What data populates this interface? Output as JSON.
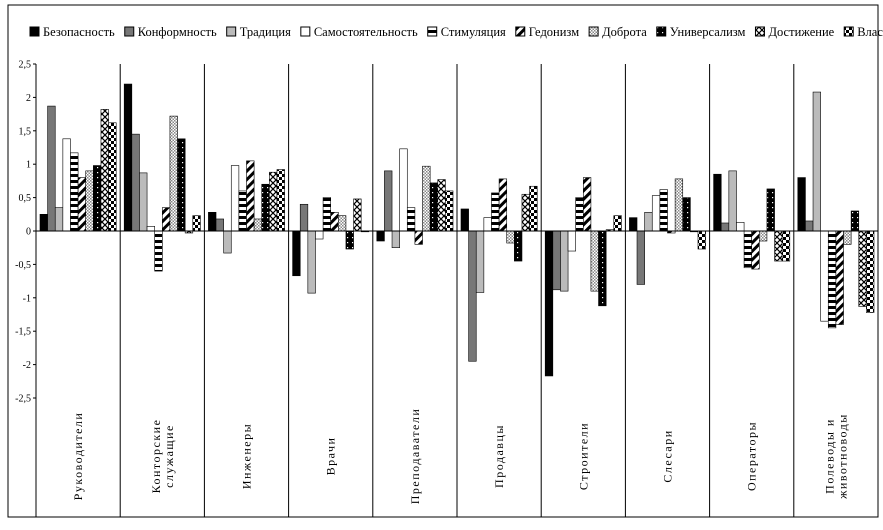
{
  "chart_data": {
    "type": "bar",
    "categories": [
      "Руководители",
      "Конторские служащие",
      "Инженеры",
      "Врачи",
      "Преподаватели",
      "Продавцы",
      "Строители",
      "Слесари",
      "Операторы",
      "Полеводы и животноводы"
    ],
    "category_lines": [
      [
        "Руководители"
      ],
      [
        "Конторские",
        "служащие"
      ],
      [
        "Инженеры"
      ],
      [
        "Врачи"
      ],
      [
        "Преподаватели"
      ],
      [
        "Продавцы"
      ],
      [
        "Строители"
      ],
      [
        "Слесари"
      ],
      [
        "Операторы"
      ],
      [
        "Полеводы и",
        "животноводы"
      ]
    ],
    "series": [
      {
        "name": "Безопасность",
        "pattern": "black",
        "values": [
          0.25,
          2.2,
          0.28,
          -0.67,
          -0.15,
          0.33,
          -2.17,
          0.2,
          0.85,
          0.8
        ]
      },
      {
        "name": "Конформность",
        "pattern": "darkgray",
        "values": [
          1.87,
          1.45,
          0.18,
          0.4,
          0.9,
          -1.95,
          -0.88,
          -0.8,
          0.12,
          0.15
        ]
      },
      {
        "name": "Традиция",
        "pattern": "lightgray",
        "values": [
          0.35,
          0.87,
          -0.33,
          -0.93,
          -0.25,
          -0.92,
          -0.9,
          0.28,
          0.9,
          2.08
        ]
      },
      {
        "name": "Самостоятельность",
        "pattern": "white",
        "values": [
          1.38,
          0.07,
          0.98,
          -0.12,
          1.23,
          0.2,
          -0.3,
          0.53,
          0.13,
          -1.35
        ]
      },
      {
        "name": "Стимуляция",
        "pattern": "hstripe",
        "values": [
          1.17,
          -0.6,
          0.6,
          0.5,
          0.35,
          0.57,
          0.5,
          0.62,
          -0.55,
          -1.45
        ]
      },
      {
        "name": "Гедонизм",
        "pattern": "diag",
        "values": [
          0.8,
          0.35,
          1.05,
          0.28,
          -0.2,
          0.78,
          0.8,
          -0.03,
          -0.57,
          -1.4
        ]
      },
      {
        "name": "Доброта",
        "pattern": "dots",
        "values": [
          0.9,
          1.72,
          0.18,
          0.23,
          0.97,
          -0.18,
          -0.9,
          0.78,
          -0.15,
          -0.2
        ]
      },
      {
        "name": "Универсализм",
        "pattern": "blackdots",
        "values": [
          0.98,
          1.38,
          0.7,
          -0.27,
          0.72,
          -0.45,
          -1.12,
          0.5,
          0.63,
          0.3
        ]
      },
      {
        "name": "Достижение",
        "pattern": "cross",
        "values": [
          1.82,
          -0.03,
          0.88,
          0.48,
          0.77,
          0.55,
          0.02,
          0.0,
          -0.45,
          -1.13
        ]
      },
      {
        "name": "Власть",
        "pattern": "checker",
        "values": [
          1.62,
          0.23,
          0.92,
          0.0,
          0.6,
          0.67,
          0.23,
          -0.27,
          -0.45,
          -1.22
        ]
      }
    ],
    "ylim": [
      -2.5,
      2.5
    ],
    "yticks": [
      "2,5",
      "2",
      "1,5",
      "1",
      "0,5",
      "0",
      "-0,5",
      "-1",
      "-1,5",
      "-2",
      "-2,5"
    ],
    "legend_position": "top",
    "grid": false,
    "title": "",
    "xlabel": "",
    "ylabel": ""
  }
}
